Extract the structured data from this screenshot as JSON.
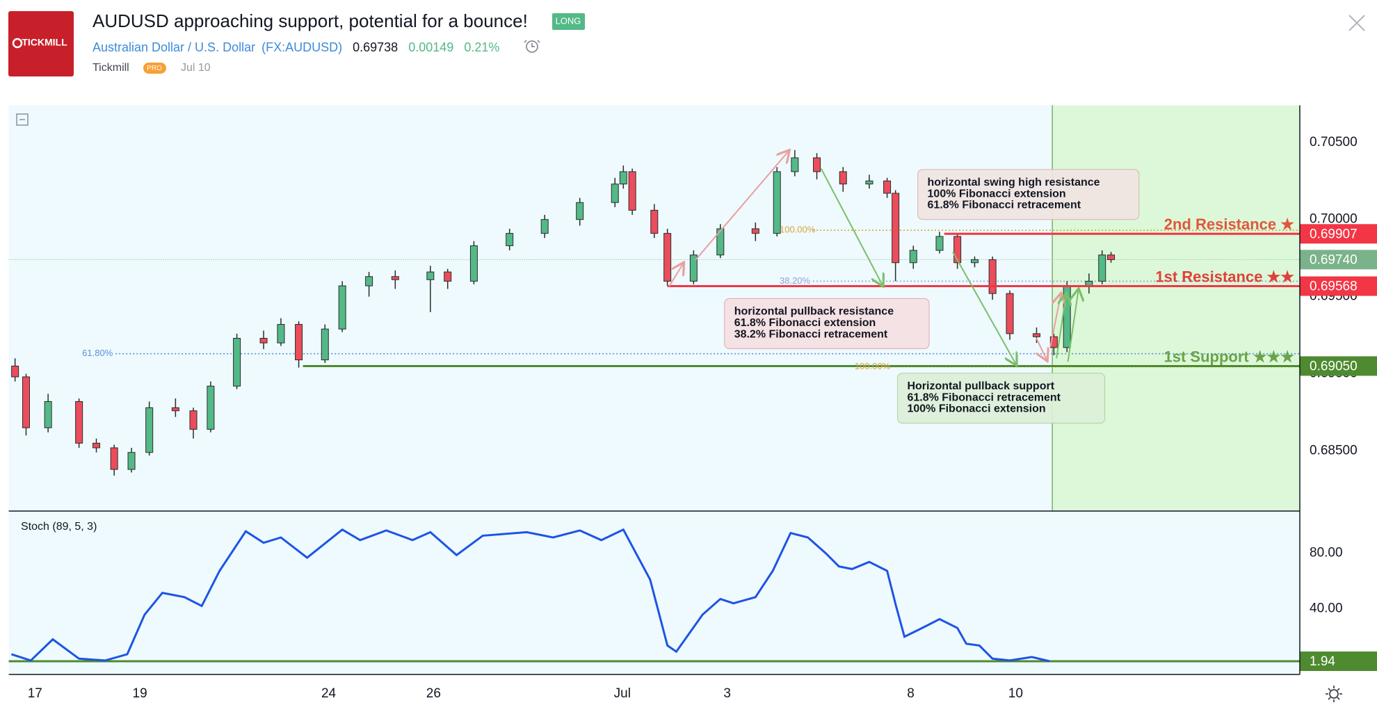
{
  "header": {
    "logo": "TICKMILL",
    "title": "AUDUSD approaching support, potential for a bounce!",
    "badge": "LONG",
    "instrument": "Australian Dollar / U.S. Dollar",
    "symbol": "(FX:AUDUSD)",
    "price": "0.69738",
    "change": "0.00149",
    "change_pct": "0.21%",
    "author": "Tickmill",
    "author_badge": "PRO",
    "date": "Jul 10"
  },
  "chart_data": [
    {
      "type": "candlestick",
      "up_color": "#53b987",
      "down_color": "#eb4d5c",
      "x": [
        -0.38,
        -0.17,
        0.25,
        0.84,
        1.17,
        1.51,
        1.84,
        2.18,
        2.68,
        3.02,
        3.35,
        3.85,
        4.36,
        4.69,
        5.03,
        5.53,
        5.86,
        6.37,
        6.87,
        7.54,
        7.87,
        8.37,
        9.05,
        9.72,
        10.39,
        11.06,
        11.22,
        11.39,
        11.81,
        12.06,
        12.56,
        13.07,
        13.74,
        14.15,
        14.49,
        14.91,
        15.41,
        15.91,
        16.25,
        16.41,
        16.75,
        17.25,
        17.59,
        17.92,
        18.26,
        18.59,
        19.1,
        19.43,
        19.68,
        20.1,
        20.35,
        20.52
      ],
      "open": [
        0.6905,
        0.6898,
        0.6865,
        0.6882,
        0.6855,
        0.6852,
        0.6838,
        0.6849,
        0.6878,
        0.6876,
        0.6864,
        0.6892,
        0.6923,
        0.692,
        0.6932,
        0.6909,
        0.6929,
        0.6957,
        0.6963,
        0.6961,
        0.6966,
        0.696,
        0.6983,
        0.6991,
        0.7,
        0.7011,
        0.7023,
        0.7031,
        0.7006,
        0.6991,
        0.696,
        0.6977,
        0.6994,
        0.6991,
        0.7031,
        0.704,
        0.7031,
        0.7023,
        0.7025,
        0.7017,
        0.6972,
        0.698,
        0.6989,
        0.6972,
        0.6974,
        0.6952,
        0.6926,
        0.6924,
        0.6917,
        0.6957,
        0.696,
        0.6977
      ],
      "high": [
        0.691,
        0.69,
        0.6887,
        0.6884,
        0.6858,
        0.6854,
        0.6852,
        0.6882,
        0.6884,
        0.6878,
        0.6895,
        0.6926,
        0.6928,
        0.6936,
        0.6934,
        0.6932,
        0.696,
        0.6966,
        0.6967,
        0.697,
        0.6968,
        0.6986,
        0.6994,
        0.7003,
        0.7014,
        0.7027,
        0.7035,
        0.7033,
        0.701,
        0.6994,
        0.698,
        0.6997,
        0.6998,
        0.7034,
        0.7045,
        0.7043,
        0.7034,
        0.7029,
        0.7027,
        0.7019,
        0.6983,
        0.6992,
        0.6991,
        0.6976,
        0.6976,
        0.6954,
        0.693,
        0.6926,
        0.696,
        0.6965,
        0.698,
        0.6979
      ],
      "low": [
        0.6895,
        0.686,
        0.6862,
        0.6852,
        0.6849,
        0.6834,
        0.6836,
        0.6847,
        0.6872,
        0.6858,
        0.6862,
        0.689,
        0.6916,
        0.6918,
        0.6904,
        0.6907,
        0.6927,
        0.695,
        0.6955,
        0.694,
        0.6955,
        0.6958,
        0.698,
        0.6988,
        0.6996,
        0.7008,
        0.702,
        0.7003,
        0.6988,
        0.6957,
        0.6958,
        0.6975,
        0.6986,
        0.6989,
        0.7028,
        0.7026,
        0.7018,
        0.702,
        0.7014,
        0.696,
        0.6968,
        0.6978,
        0.6968,
        0.6969,
        0.6948,
        0.6922,
        0.692,
        0.6912,
        0.6914,
        0.6952,
        0.6958,
        0.6972
      ],
      "close": [
        0.6898,
        0.6865,
        0.6882,
        0.6855,
        0.6852,
        0.6838,
        0.6849,
        0.6878,
        0.6876,
        0.6864,
        0.6892,
        0.6923,
        0.692,
        0.6932,
        0.6909,
        0.6929,
        0.6957,
        0.6963,
        0.6961,
        0.6966,
        0.696,
        0.6983,
        0.6991,
        0.7,
        0.7011,
        0.7023,
        0.7031,
        0.7006,
        0.6991,
        0.696,
        0.6977,
        0.6994,
        0.6991,
        0.7031,
        0.704,
        0.7031,
        0.7023,
        0.7025,
        0.7017,
        0.6972,
        0.698,
        0.6989,
        0.6972,
        0.6974,
        0.6952,
        0.6926,
        0.6924,
        0.6917,
        0.6957,
        0.696,
        0.6977,
        0.6974
      ],
      "xlim": [
        -0.5,
        24.12
      ],
      "ylim": [
        0.6811,
        0.7074
      ],
      "xticks": [
        {
          "value": 0,
          "label": "17"
        },
        {
          "value": 2,
          "label": "19"
        },
        {
          "value": 5.6,
          "label": "24"
        },
        {
          "value": 7.6,
          "label": "26"
        },
        {
          "value": 11.2,
          "label": "Jul"
        },
        {
          "value": 13.2,
          "label": "3"
        },
        {
          "value": 16.7,
          "label": "8"
        },
        {
          "value": 18.7,
          "label": "10"
        }
      ],
      "yticks": [
        {
          "value": 0.705,
          "label": "0.70500"
        },
        {
          "value": 0.7,
          "label": "0.70000"
        },
        {
          "value": 0.695,
          "label": "0.69500"
        },
        {
          "value": 0.69,
          "label": "0.69000"
        },
        {
          "value": 0.685,
          "label": "0.68500"
        }
      ],
      "grid": false,
      "shade_from": 19.4,
      "current_price": {
        "value": 0.6974,
        "label": "0.69740",
        "color": "#7ab38a"
      },
      "levels": [
        {
          "name": "2nd Resistance ★",
          "value": 0.69907,
          "label": "0.69907",
          "x_start": 17.34,
          "color": "#f23645",
          "text_color": "#e2573c"
        },
        {
          "name": "1st Resistance ★★",
          "value": 0.69568,
          "label": "0.69568",
          "x_start": 12.06,
          "color": "#f23645",
          "text_color": "#e0403a"
        },
        {
          "name": "1st Support ★★★",
          "value": 0.6905,
          "label": "0.69050",
          "x_start": 5.11,
          "color": "#4e8a2f",
          "text_color": "#6aa34a"
        }
      ],
      "fib_levels": [
        {
          "value": 0.6913,
          "label": "61.80%",
          "x": 0.9,
          "color": "#5b8fd6"
        },
        {
          "value": 0.696,
          "label": "38.20%",
          "x": 14.2,
          "color": "#8fa3d9"
        },
        {
          "value": 0.6993,
          "label": "100.00%",
          "x": 14.2,
          "color": "#d9a53a"
        },
        {
          "value": 0.69045,
          "label": "100.00%",
          "x": 15.63,
          "color": "#d9a53a"
        }
      ],
      "annotations": [
        {
          "lines": [
            "horizontal swing high resistance",
            "100% Fibonacci extension",
            "61.8% Fibonacci retracement"
          ]
        },
        {
          "lines": [
            "horizontal pullback resistance",
            "61.8% Fibonacci extension",
            "38.2% Fibonacci retracement"
          ]
        },
        {
          "lines": [
            "Horizontal pullback support",
            "61.8% Fibonacci  retracement",
            "100% Fibonacci extension"
          ]
        }
      ]
    },
    {
      "type": "line",
      "name": "Stoch (89, 5, 3)",
      "color": "#1e53e5",
      "level_color": "#4e8a2f",
      "x": [
        -0.45,
        -0.08,
        0.34,
        0.84,
        1.34,
        1.76,
        2.09,
        2.43,
        2.85,
        3.18,
        3.52,
        4.02,
        4.36,
        4.69,
        5.19,
        5.86,
        6.2,
        6.7,
        7.2,
        7.54,
        8.04,
        8.54,
        9.38,
        9.88,
        10.39,
        10.8,
        11.22,
        11.73,
        12.06,
        12.23,
        12.73,
        13.07,
        13.32,
        13.74,
        14.07,
        14.41,
        14.74,
        15.08,
        15.33,
        15.58,
        15.91,
        16.25,
        16.42,
        16.58,
        16.92,
        17.25,
        17.59,
        17.76,
        18.01,
        18.26,
        18.59,
        19.01,
        19.35
      ],
      "values": [
        7,
        2.5,
        17.8,
        3.8,
        2.5,
        7,
        35.6,
        51.4,
        48.3,
        41.9,
        67.3,
        95.9,
        87.6,
        91.4,
        76.8,
        97.1,
        89.5,
        96.5,
        89.5,
        95.2,
        78.7,
        92.7,
        95.2,
        91.4,
        96.5,
        89.5,
        97.1,
        61,
        13.3,
        8.9,
        35.6,
        47,
        43.8,
        48.3,
        67.3,
        94.6,
        91.4,
        80,
        70.5,
        68.6,
        73.7,
        67.3,
        41.9,
        19.7,
        26,
        32.4,
        26,
        14.6,
        13.3,
        3.8,
        2.5,
        5,
        1.94
      ],
      "xlim": [
        -0.5,
        24.12
      ],
      "ylim": [
        -7.6,
        110.5
      ],
      "yticks": [
        {
          "value": 80,
          "label": "80.00"
        },
        {
          "value": 40,
          "label": "40.00"
        }
      ]
    }
  ]
}
